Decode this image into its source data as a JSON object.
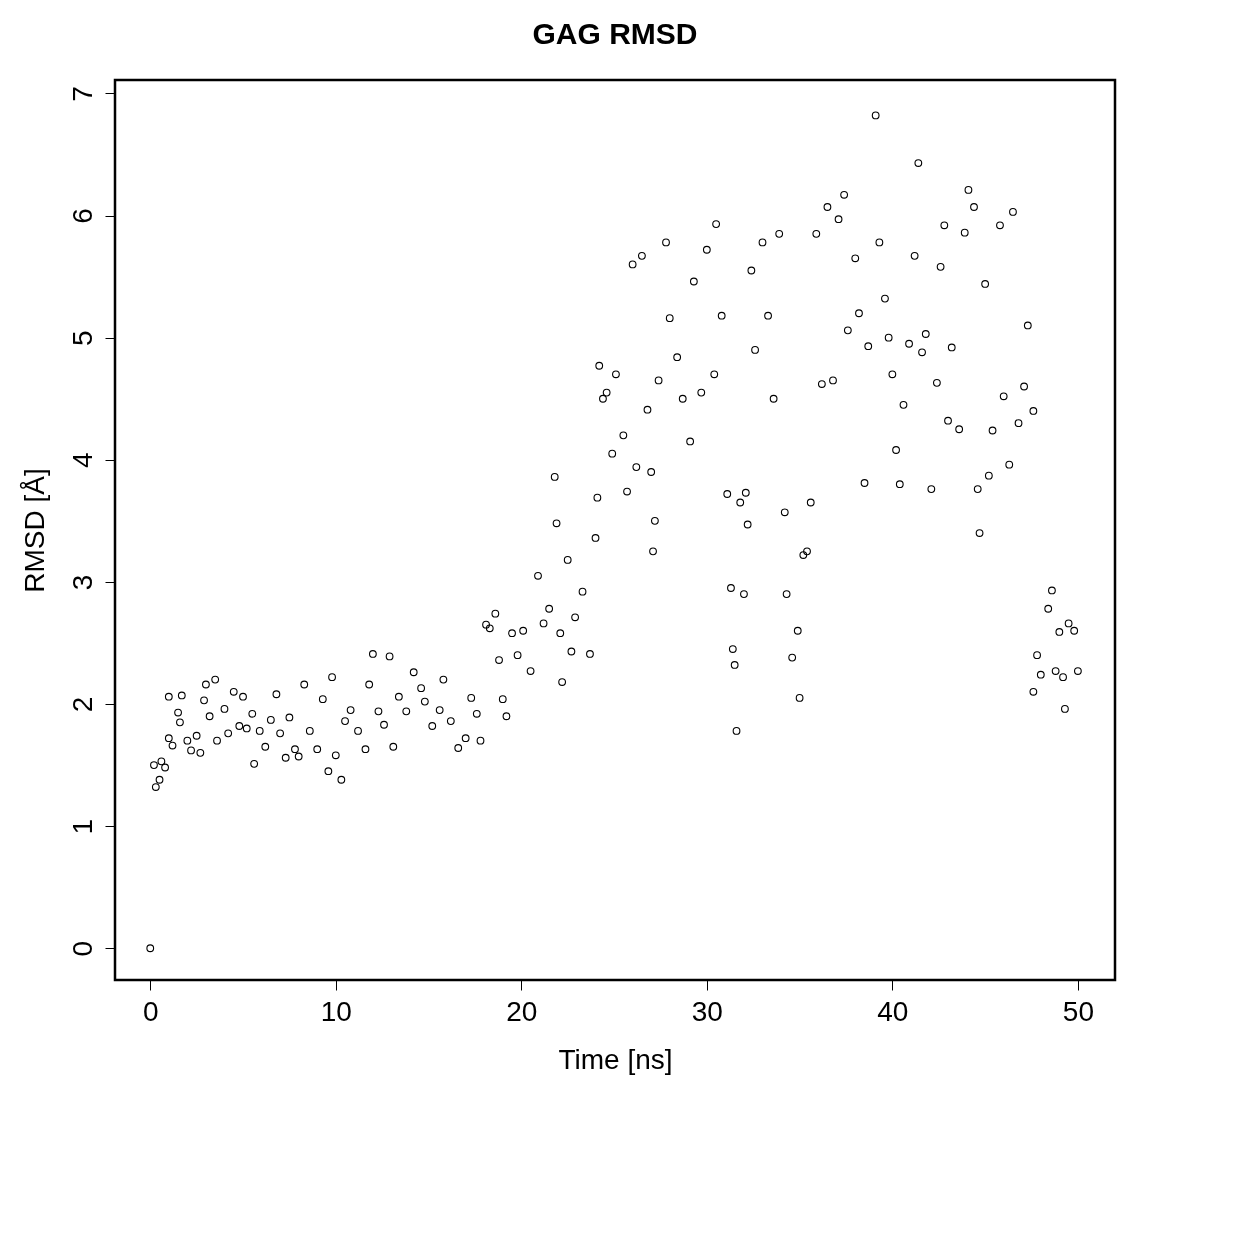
{
  "chart_data": {
    "type": "scatter",
    "title": "GAG RMSD",
    "xlabel": "Time [ns]",
    "ylabel": "RMSD [Å]",
    "x": [
      0,
      0.2,
      0.3,
      0.5,
      0.6,
      0.8,
      1.0,
      1.0,
      1.2,
      1.5,
      1.6,
      1.7,
      2.0,
      2.2,
      2.5,
      2.7,
      2.9,
      3.0,
      3.2,
      3.5,
      3.6,
      4.0,
      4.2,
      4.5,
      4.8,
      5.0,
      5.2,
      5.5,
      5.6,
      5.9,
      6.2,
      6.5,
      6.8,
      7.0,
      7.3,
      7.5,
      7.8,
      8.0,
      8.3,
      8.6,
      9.0,
      9.3,
      9.6,
      9.8,
      10.0,
      10.3,
      10.5,
      10.8,
      11.2,
      11.6,
      11.8,
      12.0,
      12.3,
      12.6,
      12.9,
      13.1,
      13.4,
      13.8,
      14.2,
      14.6,
      14.8,
      15.2,
      15.6,
      15.8,
      16.2,
      16.6,
      17.0,
      17.3,
      17.6,
      17.8,
      18.1,
      18.3,
      18.6,
      18.8,
      19.0,
      19.2,
      19.5,
      19.8,
      20.1,
      20.5,
      20.9,
      21.2,
      21.5,
      21.8,
      21.9,
      22.1,
      22.2,
      22.5,
      22.7,
      22.9,
      23.3,
      23.7,
      24.0,
      24.1,
      24.2,
      24.4,
      24.6,
      24.9,
      25.1,
      25.5,
      25.7,
      26.0,
      26.2,
      26.5,
      26.8,
      27.0,
      27.1,
      27.2,
      27.4,
      27.8,
      28.0,
      28.4,
      28.7,
      29.1,
      29.3,
      29.7,
      30.0,
      30.4,
      30.5,
      30.8,
      31.1,
      31.3,
      31.4,
      31.5,
      31.6,
      31.8,
      32.0,
      32.1,
      32.2,
      32.4,
      32.6,
      33.0,
      33.3,
      33.6,
      33.9,
      34.2,
      34.3,
      34.6,
      34.9,
      35.0,
      35.2,
      35.4,
      35.6,
      35.9,
      36.2,
      36.5,
      36.8,
      37.1,
      37.4,
      37.6,
      38.0,
      38.2,
      38.5,
      38.7,
      39.1,
      39.3,
      39.6,
      39.8,
      40.0,
      40.2,
      40.4,
      40.6,
      40.9,
      41.2,
      41.4,
      41.6,
      41.8,
      42.1,
      42.4,
      42.6,
      42.8,
      43.0,
      43.2,
      43.6,
      43.9,
      44.1,
      44.4,
      44.6,
      44.7,
      45.0,
      45.2,
      45.4,
      45.8,
      46.0,
      46.3,
      46.5,
      46.8,
      47.1,
      47.3,
      47.6,
      47.6,
      47.8,
      48.0,
      48.4,
      48.6,
      48.8,
      49.0,
      49.2,
      49.3,
      49.5,
      49.8,
      50.0
    ],
    "values": [
      0,
      1.5,
      1.32,
      1.38,
      1.53,
      1.48,
      1.72,
      2.06,
      1.66,
      1.93,
      1.85,
      2.07,
      1.7,
      1.62,
      1.74,
      1.6,
      2.03,
      2.16,
      1.9,
      2.2,
      1.7,
      1.96,
      1.76,
      2.1,
      1.82,
      2.06,
      1.8,
      1.92,
      1.51,
      1.78,
      1.65,
      1.87,
      2.08,
      1.76,
      1.56,
      1.89,
      1.63,
      1.57,
      2.16,
      1.78,
      1.63,
      2.04,
      1.45,
      2.22,
      1.58,
      1.38,
      1.86,
      1.95,
      1.78,
      1.63,
      2.16,
      2.41,
      1.94,
      1.83,
      2.39,
      1.65,
      2.06,
      1.94,
      2.26,
      2.13,
      2.02,
      1.82,
      1.95,
      2.2,
      1.86,
      1.64,
      1.72,
      2.05,
      1.92,
      1.7,
      2.65,
      2.62,
      2.74,
      2.36,
      2.04,
      1.9,
      2.58,
      2.4,
      2.6,
      2.27,
      3.05,
      2.66,
      2.78,
      3.86,
      3.48,
      2.58,
      2.18,
      3.18,
      2.43,
      2.71,
      2.92,
      2.41,
      3.36,
      3.69,
      4.77,
      4.5,
      4.55,
      4.05,
      4.7,
      4.2,
      3.74,
      5.6,
      3.94,
      5.67,
      4.41,
      3.9,
      3.25,
      3.5,
      4.65,
      5.78,
      5.16,
      4.84,
      4.5,
      4.15,
      5.46,
      4.55,
      5.72,
      4.7,
      5.93,
      5.18,
      3.72,
      2.95,
      2.45,
      2.32,
      1.78,
      3.65,
      2.9,
      3.73,
      3.47,
      5.55,
      4.9,
      5.78,
      5.18,
      4.5,
      5.85,
      3.57,
      2.9,
      2.38,
      2.6,
      2.05,
      3.22,
      3.25,
      3.65,
      5.85,
      4.62,
      6.07,
      4.65,
      5.97,
      6.17,
      5.06,
      5.65,
      5.2,
      3.81,
      4.93,
      6.82,
      5.78,
      5.32,
      5.0,
      4.7,
      4.08,
      3.8,
      4.45,
      4.95,
      5.67,
      6.43,
      4.88,
      5.03,
      3.76,
      4.63,
      5.58,
      5.92,
      4.32,
      4.92,
      4.25,
      5.86,
      6.21,
      6.07,
      3.76,
      3.4,
      5.44,
      3.87,
      4.24,
      5.92,
      4.52,
      3.96,
      6.03,
      4.3,
      4.6,
      5.1,
      4.4,
      2.1,
      2.4,
      2.24,
      2.78,
      2.93,
      2.27,
      2.59,
      2.22,
      1.96,
      2.66,
      2.6,
      2.27
    ],
    "color": "#000000",
    "marker": "circle",
    "grid": false,
    "xlim": [
      -1.9,
      52.0
    ],
    "ylim": [
      -0.26,
      7.11
    ],
    "xticks": [
      0,
      10,
      20,
      30,
      40,
      50
    ],
    "yticks": [
      0,
      1,
      2,
      3,
      4,
      5,
      6,
      7
    ]
  }
}
